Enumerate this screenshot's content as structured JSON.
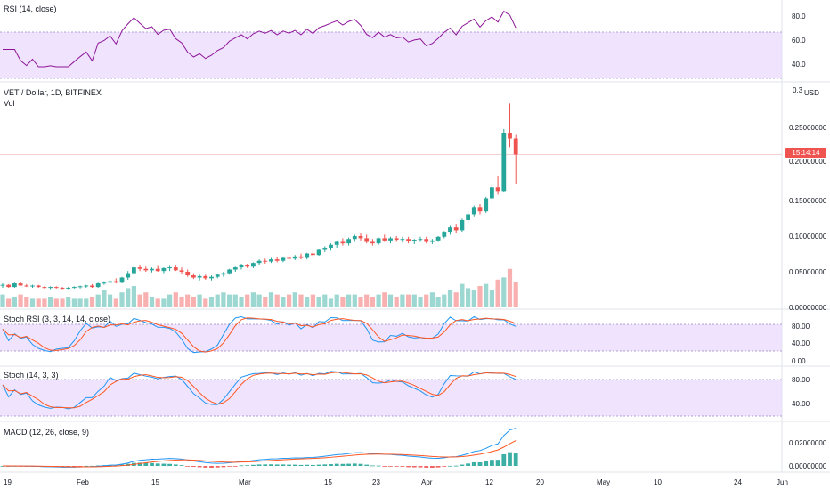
{
  "panels": {
    "rsi": {
      "label": "RSI (14, close)",
      "ticks": [
        "80.0",
        "60.0",
        "40.0"
      ]
    },
    "price": {
      "symbol": "VET / Dollar, 1D, BITFINEX",
      "vol": "Vol",
      "unit": "USD",
      "ticks": [
        "0.3",
        "0.25000000",
        "0.20000000",
        "0.15000000",
        "0.10000000",
        "0.05000000",
        "0.00000000"
      ],
      "current_price_label": "15:14:14"
    },
    "stoch_rsi": {
      "label": "Stoch RSI (3, 3, 14, 14, close)",
      "ticks": [
        "80.00",
        "40.00",
        "0.00"
      ]
    },
    "stoch": {
      "label": "Stoch (14, 3, 3)",
      "ticks": [
        "80.00",
        "40.00"
      ]
    },
    "macd": {
      "label": "MACD (12, 26, close, 9)",
      "ticks": [
        "0.02000000",
        "0.00000000"
      ]
    }
  },
  "time_axis": {
    "labels": [
      "19",
      "Feb",
      "15",
      "Mar",
      "15",
      "23",
      "Apr",
      "12",
      "20",
      "May",
      "10",
      "24",
      "Jun"
    ]
  },
  "colors": {
    "up": "#26a69a",
    "down": "#ef5350",
    "rsi_line": "#8e1599",
    "band": "#ead9fc",
    "k_line": "#2196f3",
    "d_line": "#ff5722"
  },
  "chart_data": {
    "type": "candlestick",
    "title": "VET / Dollar, 1D, BITFINEX",
    "ylabel": "USD",
    "ylim": [
      0,
      0.3
    ],
    "candles": [
      [
        0.03,
        0.033,
        0.027,
        0.031
      ],
      [
        0.031,
        0.032,
        0.027,
        0.028
      ],
      [
        0.028,
        0.034,
        0.027,
        0.033
      ],
      [
        0.033,
        0.035,
        0.03,
        0.03
      ],
      [
        0.03,
        0.032,
        0.028,
        0.029
      ],
      [
        0.029,
        0.031,
        0.027,
        0.03
      ],
      [
        0.03,
        0.031,
        0.027,
        0.028
      ],
      [
        0.028,
        0.029,
        0.026,
        0.027
      ],
      [
        0.027,
        0.029,
        0.025,
        0.028
      ],
      [
        0.028,
        0.029,
        0.026,
        0.027
      ],
      [
        0.027,
        0.028,
        0.025,
        0.026
      ],
      [
        0.026,
        0.028,
        0.025,
        0.027
      ],
      [
        0.027,
        0.029,
        0.026,
        0.028
      ],
      [
        0.028,
        0.03,
        0.026,
        0.029
      ],
      [
        0.029,
        0.031,
        0.027,
        0.03
      ],
      [
        0.03,
        0.032,
        0.027,
        0.028
      ],
      [
        0.028,
        0.034,
        0.027,
        0.033
      ],
      [
        0.033,
        0.036,
        0.031,
        0.034
      ],
      [
        0.034,
        0.038,
        0.032,
        0.036
      ],
      [
        0.036,
        0.04,
        0.033,
        0.034
      ],
      [
        0.034,
        0.042,
        0.033,
        0.041
      ],
      [
        0.041,
        0.05,
        0.038,
        0.047
      ],
      [
        0.047,
        0.058,
        0.044,
        0.055
      ],
      [
        0.055,
        0.058,
        0.05,
        0.053
      ],
      [
        0.053,
        0.056,
        0.049,
        0.051
      ],
      [
        0.051,
        0.055,
        0.048,
        0.053
      ],
      [
        0.053,
        0.057,
        0.049,
        0.05
      ],
      [
        0.05,
        0.055,
        0.047,
        0.054
      ],
      [
        0.054,
        0.057,
        0.05,
        0.055
      ],
      [
        0.055,
        0.058,
        0.05,
        0.051
      ],
      [
        0.051,
        0.055,
        0.046,
        0.049
      ],
      [
        0.049,
        0.052,
        0.042,
        0.044
      ],
      [
        0.044,
        0.047,
        0.039,
        0.041
      ],
      [
        0.041,
        0.045,
        0.037,
        0.043
      ],
      [
        0.043,
        0.045,
        0.038,
        0.04
      ],
      [
        0.04,
        0.044,
        0.037,
        0.042
      ],
      [
        0.042,
        0.046,
        0.04,
        0.045
      ],
      [
        0.045,
        0.049,
        0.042,
        0.047
      ],
      [
        0.047,
        0.053,
        0.045,
        0.052
      ],
      [
        0.052,
        0.056,
        0.049,
        0.055
      ],
      [
        0.055,
        0.06,
        0.052,
        0.058
      ],
      [
        0.058,
        0.06,
        0.054,
        0.056
      ],
      [
        0.056,
        0.062,
        0.054,
        0.061
      ],
      [
        0.061,
        0.066,
        0.058,
        0.064
      ],
      [
        0.064,
        0.067,
        0.06,
        0.063
      ],
      [
        0.063,
        0.068,
        0.061,
        0.066
      ],
      [
        0.066,
        0.069,
        0.062,
        0.064
      ],
      [
        0.064,
        0.069,
        0.062,
        0.068
      ],
      [
        0.068,
        0.072,
        0.064,
        0.067
      ],
      [
        0.067,
        0.072,
        0.065,
        0.07
      ],
      [
        0.07,
        0.074,
        0.066,
        0.068
      ],
      [
        0.068,
        0.075,
        0.066,
        0.074
      ],
      [
        0.074,
        0.078,
        0.07,
        0.072
      ],
      [
        0.072,
        0.08,
        0.071,
        0.079
      ],
      [
        0.079,
        0.084,
        0.076,
        0.082
      ],
      [
        0.082,
        0.088,
        0.078,
        0.086
      ],
      [
        0.086,
        0.092,
        0.082,
        0.09
      ],
      [
        0.09,
        0.095,
        0.085,
        0.088
      ],
      [
        0.088,
        0.096,
        0.085,
        0.094
      ],
      [
        0.094,
        0.1,
        0.09,
        0.098
      ],
      [
        0.098,
        0.102,
        0.092,
        0.095
      ],
      [
        0.095,
        0.1,
        0.088,
        0.09
      ],
      [
        0.09,
        0.094,
        0.085,
        0.088
      ],
      [
        0.088,
        0.096,
        0.086,
        0.095
      ],
      [
        0.095,
        0.1,
        0.09,
        0.092
      ],
      [
        0.092,
        0.097,
        0.088,
        0.095
      ],
      [
        0.095,
        0.098,
        0.09,
        0.093
      ],
      [
        0.093,
        0.097,
        0.089,
        0.094
      ],
      [
        0.094,
        0.097,
        0.088,
        0.091
      ],
      [
        0.091,
        0.094,
        0.087,
        0.093
      ],
      [
        0.093,
        0.097,
        0.09,
        0.094
      ],
      [
        0.094,
        0.097,
        0.088,
        0.09
      ],
      [
        0.09,
        0.094,
        0.087,
        0.092
      ],
      [
        0.092,
        0.098,
        0.09,
        0.097
      ],
      [
        0.097,
        0.105,
        0.095,
        0.104
      ],
      [
        0.104,
        0.112,
        0.1,
        0.11
      ],
      [
        0.11,
        0.115,
        0.102,
        0.106
      ],
      [
        0.106,
        0.122,
        0.104,
        0.12
      ],
      [
        0.12,
        0.132,
        0.116,
        0.128
      ],
      [
        0.128,
        0.14,
        0.124,
        0.138
      ],
      [
        0.138,
        0.142,
        0.128,
        0.132
      ],
      [
        0.132,
        0.152,
        0.13,
        0.15
      ],
      [
        0.15,
        0.168,
        0.146,
        0.165
      ],
      [
        0.165,
        0.18,
        0.155,
        0.16
      ],
      [
        0.16,
        0.245,
        0.158,
        0.24
      ],
      [
        0.24,
        0.28,
        0.22,
        0.232
      ],
      [
        0.232,
        0.238,
        0.17,
        0.21
      ]
    ],
    "volume": [
      0.3,
      0.2,
      0.25,
      0.3,
      0.25,
      0.2,
      0.2,
      0.2,
      0.25,
      0.2,
      0.2,
      0.25,
      0.2,
      0.2,
      0.2,
      0.25,
      0.3,
      0.4,
      0.3,
      0.2,
      0.35,
      0.45,
      0.5,
      0.3,
      0.35,
      0.25,
      0.2,
      0.2,
      0.3,
      0.35,
      0.25,
      0.3,
      0.25,
      0.3,
      0.2,
      0.25,
      0.3,
      0.35,
      0.3,
      0.3,
      0.25,
      0.3,
      0.35,
      0.3,
      0.25,
      0.35,
      0.3,
      0.25,
      0.3,
      0.35,
      0.3,
      0.25,
      0.3,
      0.25,
      0.3,
      0.2,
      0.3,
      0.25,
      0.3,
      0.3,
      0.25,
      0.3,
      0.25,
      0.3,
      0.35,
      0.3,
      0.25,
      0.3,
      0.3,
      0.3,
      0.25,
      0.3,
      0.35,
      0.25,
      0.3,
      0.4,
      0.35,
      0.55,
      0.45,
      0.4,
      0.5,
      0.55,
      0.4,
      0.65,
      0.7,
      0.9,
      0.6
    ]
  }
}
